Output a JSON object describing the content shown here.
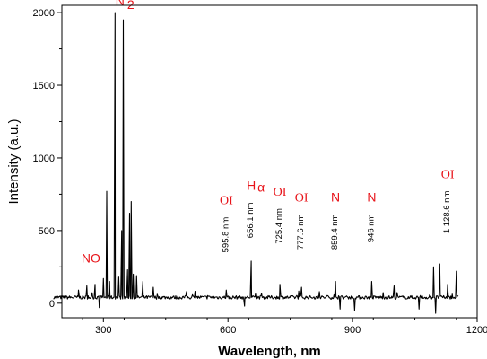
{
  "chart_data": {
    "type": "line",
    "title": "",
    "xlabel": "Wavelength, nm",
    "ylabel": "Intensity (a.u.)",
    "xlim": [
      200,
      1200
    ],
    "ylim": [
      -100,
      2050
    ],
    "x_ticks": [
      "300",
      "600",
      "900",
      "1200"
    ],
    "y_ticks": [
      "0",
      "500",
      "1000",
      "1500",
      "2000"
    ],
    "grid": false,
    "line_color": "#000000",
    "annotation_color": "#e8141a",
    "series": [
      {
        "baseline": 40,
        "noise_amplitude": 12,
        "x_start": 180,
        "x_end": 1155,
        "peaks": [
          {
            "x": 240,
            "y": 90
          },
          {
            "x": 260,
            "y": 120
          },
          {
            "x": 280,
            "y": 130
          },
          {
            "x": 300,
            "y": 170
          },
          {
            "x": 308,
            "y": 770
          },
          {
            "x": 315,
            "y": 150
          },
          {
            "x": 328,
            "y": 2000
          },
          {
            "x": 337,
            "y": 180
          },
          {
            "x": 344,
            "y": 500
          },
          {
            "x": 348,
            "y": 1950
          },
          {
            "x": 358,
            "y": 230
          },
          {
            "x": 363,
            "y": 620
          },
          {
            "x": 367,
            "y": 700
          },
          {
            "x": 372,
            "y": 200
          },
          {
            "x": 380,
            "y": 190
          },
          {
            "x": 395,
            "y": 150
          },
          {
            "x": 420,
            "y": 110
          },
          {
            "x": 500,
            "y": 80
          },
          {
            "x": 596,
            "y": 90
          },
          {
            "x": 656,
            "y": 290
          },
          {
            "x": 725,
            "y": 130
          },
          {
            "x": 777,
            "y": 110
          },
          {
            "x": 820,
            "y": 80
          },
          {
            "x": 859,
            "y": 150
          },
          {
            "x": 946,
            "y": 150
          },
          {
            "x": 1000,
            "y": 120
          },
          {
            "x": 1095,
            "y": 250
          },
          {
            "x": 1110,
            "y": 270
          },
          {
            "x": 1129,
            "y": 130
          },
          {
            "x": 1150,
            "y": 220
          }
        ],
        "dips": [
          {
            "x": 290,
            "y": -30
          },
          {
            "x": 640,
            "y": -20
          },
          {
            "x": 870,
            "y": -40
          },
          {
            "x": 905,
            "y": -50
          },
          {
            "x": 1060,
            "y": -40
          },
          {
            "x": 1100,
            "y": -70
          }
        ]
      }
    ],
    "annotations": [
      {
        "species": "N",
        "sub": "2",
        "wavelength": "",
        "x": 340,
        "y": 2050
      },
      {
        "species": "NO",
        "sub": "",
        "wavelength": "",
        "x": 270,
        "y": 280
      },
      {
        "species": "OI",
        "sub": "",
        "wavelength": "595.8 nm",
        "x": 596,
        "y": 680
      },
      {
        "species": "H",
        "sub": "α",
        "wavelength": "656.1 nm",
        "x": 656,
        "y": 780
      },
      {
        "species": "OI",
        "sub": "",
        "wavelength": "725.4 nm",
        "x": 725,
        "y": 740
      },
      {
        "species": "OI",
        "sub": "",
        "wavelength": "777.6 nm",
        "x": 777,
        "y": 700
      },
      {
        "species": "N",
        "sub": "",
        "wavelength": "859.4 nm",
        "x": 859,
        "y": 700
      },
      {
        "species": "N",
        "sub": "",
        "wavelength": "946 nm",
        "x": 946,
        "y": 700
      },
      {
        "species": "OI",
        "sub": "",
        "wavelength": "1 128.6 nm",
        "x": 1129,
        "y": 860
      }
    ]
  }
}
